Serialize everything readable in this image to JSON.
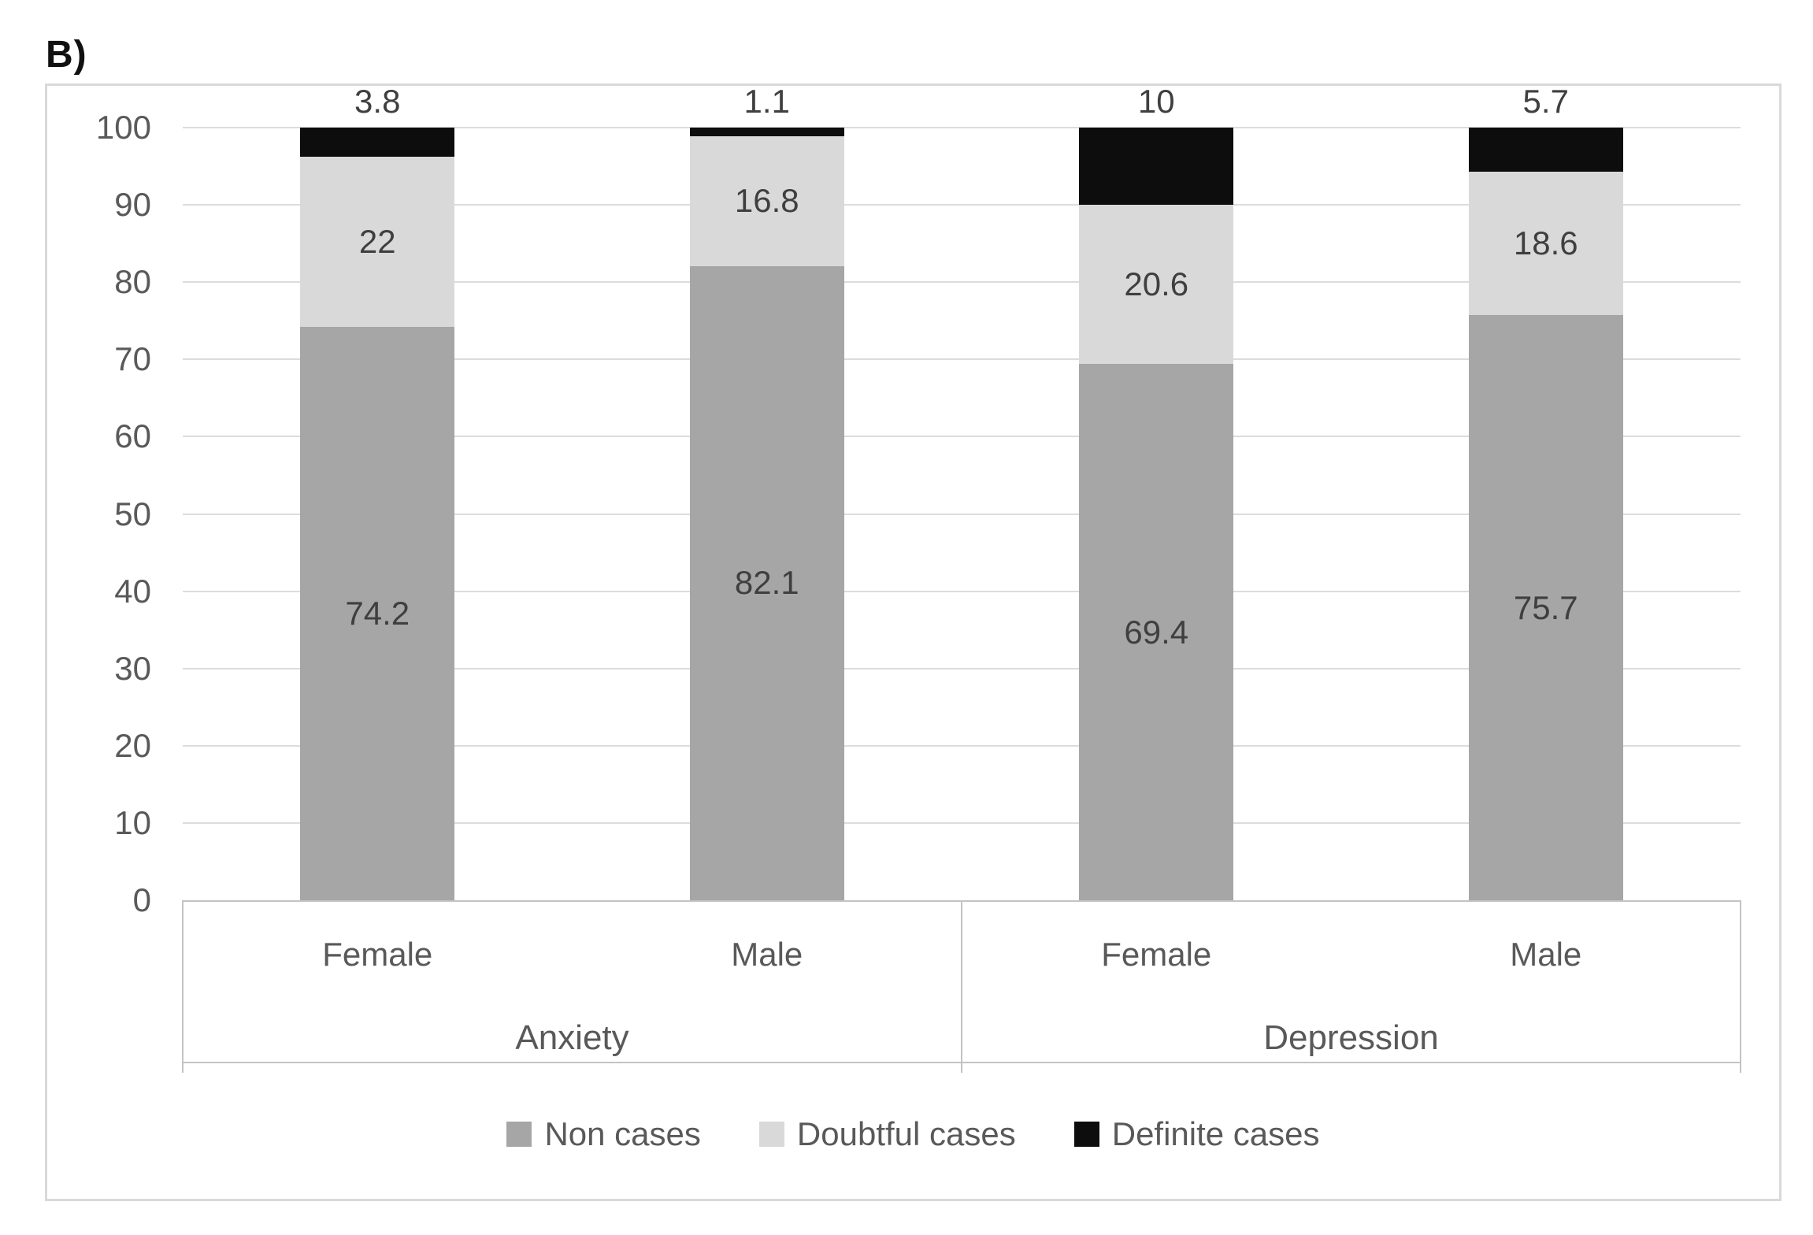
{
  "panel_label": "B)",
  "chart_data": {
    "type": "bar",
    "stacked": true,
    "title": "",
    "xlabel": "",
    "ylabel": "",
    "ylim": [
      0,
      100
    ],
    "yticks": [
      0,
      10,
      20,
      30,
      40,
      50,
      60,
      70,
      80,
      90,
      100
    ],
    "grid": true,
    "legend_position": "bottom",
    "group_labels": [
      "Anxiety",
      "Depression"
    ],
    "categories": [
      {
        "label": "Female",
        "group": "Anxiety"
      },
      {
        "label": "Male",
        "group": "Anxiety"
      },
      {
        "label": "Female",
        "group": "Depression"
      },
      {
        "label": "Male",
        "group": "Depression"
      }
    ],
    "series": [
      {
        "name": "Non cases",
        "color": "#a6a6a6",
        "label_placement": "inside",
        "values": [
          74.2,
          82.1,
          69.4,
          75.7
        ]
      },
      {
        "name": "Doubtful cases",
        "color": "#d9d9d9",
        "label_placement": "inside",
        "values": [
          22,
          16.8,
          20.6,
          18.6
        ]
      },
      {
        "name": "Definite cases",
        "color": "#0d0d0d",
        "label_placement": "above",
        "values": [
          3.8,
          1.1,
          10,
          5.7
        ]
      }
    ]
  }
}
